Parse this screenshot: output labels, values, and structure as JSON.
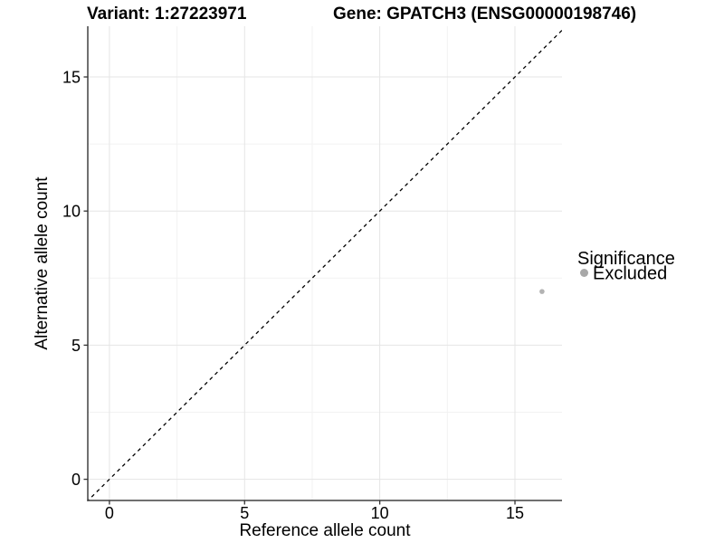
{
  "chart_data": {
    "type": "scatter",
    "title_left": "Variant: 1:27223971",
    "title_right": "Gene: GPATCH3 (ENSG00000198746)",
    "xlabel": "Reference allele count",
    "ylabel": "Alternative allele count",
    "xlim": [
      -0.8,
      16.74
    ],
    "ylim": [
      -0.79,
      16.89
    ],
    "x_major_ticks": [
      0,
      5,
      10,
      15
    ],
    "y_major_ticks": [
      0,
      5,
      10,
      15
    ],
    "x_minor_ticks": [
      2.5,
      7.5,
      12.5
    ],
    "y_minor_ticks": [
      2.5,
      7.5,
      12.5
    ],
    "grid": true,
    "points": [
      {
        "x": 16,
        "y": 7,
        "series": "Excluded"
      }
    ],
    "reference_line": {
      "type": "identity",
      "style": "dashed",
      "color": "#000000"
    },
    "legend": {
      "title": "Significance",
      "position": "right",
      "items": [
        {
          "label": "Excluded",
          "color": "#a8a8a8"
        }
      ]
    },
    "colors": {
      "point": "#b3b3b3",
      "grid_major": "#e5e5e5",
      "grid_minor": "#f2f2f2",
      "axis_line": "#404040",
      "tick_mark": "#333333",
      "text": "#000000"
    }
  }
}
